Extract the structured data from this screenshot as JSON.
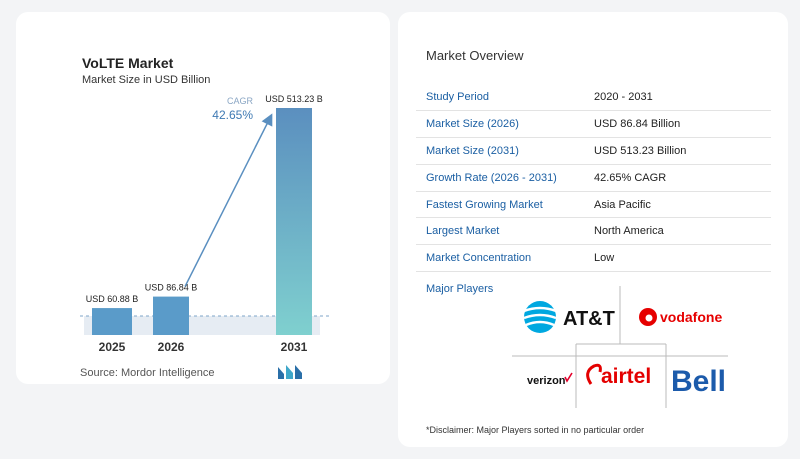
{
  "chart_data": {
    "type": "bar",
    "title": "VoLTE Market",
    "subtitle": "Market Size in USD Billion",
    "categories": [
      "2025",
      "2026",
      "2031"
    ],
    "values": [
      60.88,
      86.84,
      513.23
    ],
    "value_labels": [
      "USD 60.88 B",
      "USD 86.84 B",
      "USD 513.23 B"
    ],
    "annotation": {
      "label": "CAGR",
      "value": "42.65%"
    },
    "source": "Source:  Mordor Intelligence",
    "colors": {
      "bar_small": "#5a9bc9",
      "bar_top": "#5a8fc0",
      "bar_bottom": "#7ccfcf",
      "arrow": "#5a8fc0"
    }
  },
  "overview": {
    "title": "Market Overview",
    "rows": [
      {
        "label": "Study Period",
        "value": "2020 - 2031"
      },
      {
        "label": "Market Size (2026)",
        "value": "USD 86.84 Billion"
      },
      {
        "label": "Market Size (2031)",
        "value": "USD 513.23 Billion"
      },
      {
        "label": "Growth Rate (2026 - 2031)",
        "value": "42.65% CAGR"
      },
      {
        "label": "Fastest Growing Market",
        "value": "Asia Pacific"
      },
      {
        "label": "Largest Market",
        "value": "North America"
      },
      {
        "label": "Market Concentration",
        "value": "Low"
      }
    ]
  },
  "players": {
    "title": "Major Players",
    "logos": [
      "AT&T",
      "vodafone",
      "verizon",
      "airtel",
      "Bell"
    ],
    "disclaimer": "*Disclaimer: Major Players sorted in no particular order"
  }
}
